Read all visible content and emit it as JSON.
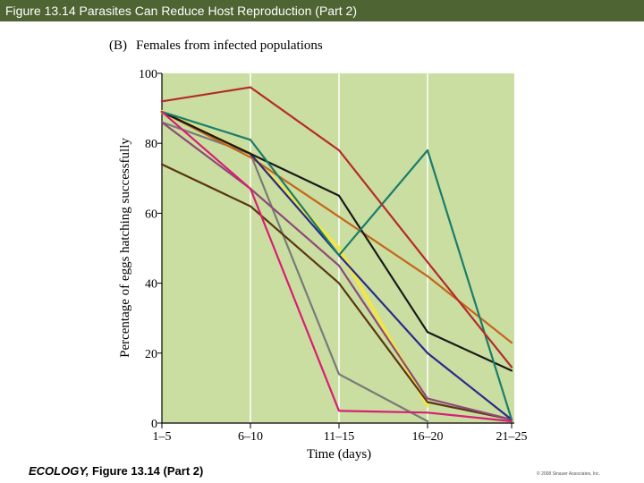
{
  "header": {
    "title": "Figure 13.14  Parasites Can Reduce Host Reproduction (Part 2)"
  },
  "footer": {
    "caption_bold": "ECOLOGY,",
    "caption_rest": " Figure 13.14 (Part 2)",
    "copyright": "© 2008 Sinauer Associates, Inc."
  },
  "colors": {
    "title_bar": "#4e6433",
    "plot_bg": "#c9dea0",
    "grid": "#ffffff"
  },
  "chart_data": {
    "type": "line",
    "panel_label": "(B)",
    "title": "Females from infected populations",
    "xlabel": "Time (days)",
    "ylabel": "Percentage of eggs hatching successfully",
    "categories": [
      "1–5",
      "6–10",
      "11–15",
      "16–20",
      "21–25"
    ],
    "ylim": [
      0,
      100
    ],
    "yticks": [
      0,
      20,
      40,
      60,
      80,
      100
    ],
    "grid": "vertical lines at category ticks",
    "series": [
      {
        "name": "red",
        "color": "#b52a2a",
        "values": [
          92,
          96,
          78,
          46,
          16
        ]
      },
      {
        "name": "teal",
        "color": "#1b7d6a",
        "values": [
          89,
          81,
          48,
          78,
          1
        ]
      },
      {
        "name": "black",
        "color": "#1a1a1a",
        "values": [
          89,
          77,
          65,
          26,
          15
        ]
      },
      {
        "name": "orange",
        "color": "#c6651c",
        "values": [
          89,
          76,
          59,
          42,
          23
        ]
      },
      {
        "name": "navy",
        "color": "#2a2a8a",
        "values": [
          89,
          77,
          48,
          20,
          1
        ]
      },
      {
        "name": "yellow",
        "color": "#f2e54a",
        "values": [
          89,
          77,
          50,
          5,
          null
        ]
      },
      {
        "name": "dark-brown",
        "color": "#5a3514",
        "values": [
          74,
          62,
          40,
          6,
          1
        ]
      },
      {
        "name": "purple",
        "color": "#8e4a78",
        "values": [
          86,
          67,
          45,
          7,
          1
        ]
      },
      {
        "name": "gray",
        "color": "#7a7a7a",
        "values": [
          86,
          77,
          14,
          0.5,
          null
        ]
      },
      {
        "name": "magenta",
        "color": "#d91e74",
        "values": [
          89,
          67,
          3.5,
          3,
          0.5
        ]
      }
    ]
  }
}
